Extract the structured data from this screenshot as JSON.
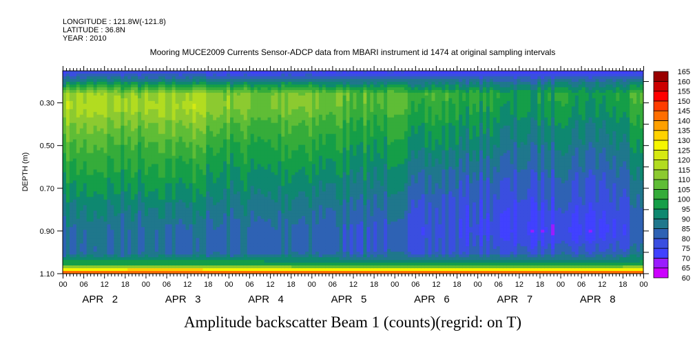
{
  "header": {
    "longitude": "LONGITUDE : 121.8W(-121.8)",
    "latitude": "LATITUDE : 36.8N",
    "year": "YEAR : 2010",
    "subtitle": "Mooring MUCE2009 Currents Sensor-ADCP data from MBARI instrument id 1474 at original sampling intervals"
  },
  "chart_data": {
    "type": "heatmap",
    "title": "Amplitude backscatter Beam 1 (counts)(regrid: on T)",
    "xlabel": "",
    "ylabel": "DEPTH (m)",
    "xlim_days": [
      0,
      7
    ],
    "ylim": [
      0.15,
      1.1
    ],
    "y_inverted": true,
    "y_ticks": [
      "0.30",
      "0.50",
      "0.70",
      "0.90",
      "1.10"
    ],
    "y_tick_values": [
      0.3,
      0.5,
      0.7,
      0.9,
      1.1
    ],
    "x_hour_labels": [
      "00",
      "06",
      "12",
      "18"
    ],
    "x_final_label": "00",
    "day_labels": [
      "APR   2",
      "APR   3",
      "APR   4",
      "APR   5",
      "APR   6",
      "APR   7",
      "APR   8"
    ],
    "time_days": [
      0,
      0.5,
      1,
      1.5,
      2,
      2.5,
      3,
      3.5,
      4,
      4.5,
      5,
      5.5,
      6,
      6.5,
      7
    ],
    "depth_levels": [
      0.15,
      0.2,
      0.26,
      0.32,
      0.4,
      0.5,
      0.6,
      0.7,
      0.8,
      0.9,
      1.0,
      1.06,
      1.08,
      1.1
    ],
    "values": [
      [
        74,
        90,
        116,
        118,
        112,
        106,
        100,
        96,
        90,
        86,
        84,
        100,
        128,
        150
      ],
      [
        74,
        92,
        114,
        116,
        110,
        104,
        100,
        95,
        90,
        86,
        84,
        100,
        128,
        150
      ],
      [
        74,
        90,
        112,
        114,
        108,
        102,
        98,
        94,
        88,
        84,
        84,
        100,
        130,
        152
      ],
      [
        74,
        92,
        116,
        118,
        112,
        106,
        100,
        96,
        90,
        85,
        84,
        100,
        130,
        150
      ],
      [
        73,
        90,
        112,
        112,
        106,
        100,
        96,
        92,
        88,
        84,
        84,
        100,
        128,
        150
      ],
      [
        73,
        90,
        110,
        110,
        104,
        100,
        96,
        92,
        88,
        84,
        83,
        100,
        128,
        150
      ],
      [
        73,
        90,
        110,
        110,
        104,
        100,
        95,
        90,
        86,
        82,
        83,
        98,
        126,
        150
      ],
      [
        73,
        88,
        108,
        106,
        102,
        98,
        94,
        90,
        86,
        82,
        82,
        98,
        126,
        150
      ],
      [
        72,
        88,
        106,
        104,
        100,
        96,
        92,
        88,
        84,
        80,
        82,
        98,
        126,
        148
      ],
      [
        72,
        88,
        104,
        102,
        98,
        94,
        88,
        84,
        80,
        78,
        80,
        98,
        126,
        150
      ],
      [
        72,
        86,
        100,
        98,
        94,
        90,
        85,
        80,
        78,
        76,
        80,
        98,
        126,
        150
      ],
      [
        71,
        86,
        98,
        96,
        92,
        88,
        84,
        80,
        77,
        74,
        80,
        98,
        126,
        150
      ],
      [
        71,
        86,
        98,
        96,
        92,
        88,
        84,
        80,
        77,
        72,
        80,
        98,
        126,
        150
      ],
      [
        71,
        86,
        96,
        94,
        90,
        86,
        82,
        78,
        76,
        72,
        80,
        98,
        126,
        150
      ],
      [
        72,
        88,
        104,
        102,
        98,
        94,
        90,
        86,
        82,
        80,
        84,
        100,
        128,
        150
      ]
    ],
    "colorbar": {
      "levels": [
        60,
        65,
        70,
        75,
        80,
        85,
        90,
        95,
        100,
        105,
        110,
        115,
        120,
        125,
        130,
        135,
        140,
        145,
        150,
        155,
        160,
        165
      ],
      "colors": [
        "#cc00ff",
        "#9a1cff",
        "#4141ff",
        "#3a4ee0",
        "#2e62b4",
        "#1f778c",
        "#0e8870",
        "#159e48",
        "#35ac3a",
        "#5fbd36",
        "#8cca30",
        "#b2dc20",
        "#d6e912",
        "#f6f600",
        "#ffd200",
        "#ffa000",
        "#ff6e00",
        "#ff3c00",
        "#ff0000",
        "#cc0000",
        "#990000"
      ]
    }
  }
}
